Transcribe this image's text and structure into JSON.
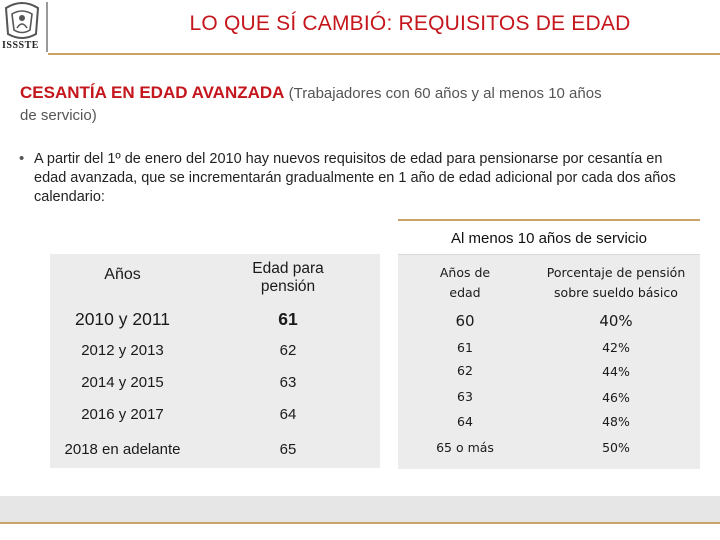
{
  "header": {
    "title": "LO QUE SÍ CAMBIÓ: REQUISITOS DE EDAD",
    "logo_text": "ISSSTE"
  },
  "subtitle": {
    "highlight": "CESANTÍA EN EDAD AVANZADA",
    "rest_line1": "(Trabajadores con 60 años y al menos 10 años",
    "rest_line2": "de servicio)"
  },
  "bullet": {
    "text": "A partir del 1º de enero del 2010 hay nuevos requisitos de edad para pensionarse por cesantía en edad avanzada, que se incrementarán gradualmente  en 1 año de edad adicional por cada dos años calendario:"
  },
  "left_table": {
    "headers": {
      "years": "Años",
      "age_line1": "Edad para",
      "age_line2": "pensión"
    },
    "rows": [
      {
        "years": "2010 y 2011",
        "age": "61"
      },
      {
        "years": "2012 y 2013",
        "age": "62"
      },
      {
        "years": "2014 y 2015",
        "age": "63"
      },
      {
        "years": "2016 y 2017",
        "age": "64"
      },
      {
        "years": "2018 en adelante",
        "age": "65"
      }
    ]
  },
  "right_table": {
    "title": "Al menos 10 años de servicio",
    "headers": {
      "age_line1": "Años de",
      "age_line2": "edad",
      "pct_line1": "Porcentaje  de pensión",
      "pct_line2": "sobre sueldo básico"
    },
    "rows": [
      {
        "age": "60",
        "pct": "40%"
      },
      {
        "age": "61",
        "pct": "42%"
      },
      {
        "age": "62",
        "pct": "44%"
      },
      {
        "age": "63",
        "pct": "46%"
      },
      {
        "age": "64",
        "pct": "48%"
      },
      {
        "age": "65 o más",
        "pct": "50%"
      }
    ]
  }
}
